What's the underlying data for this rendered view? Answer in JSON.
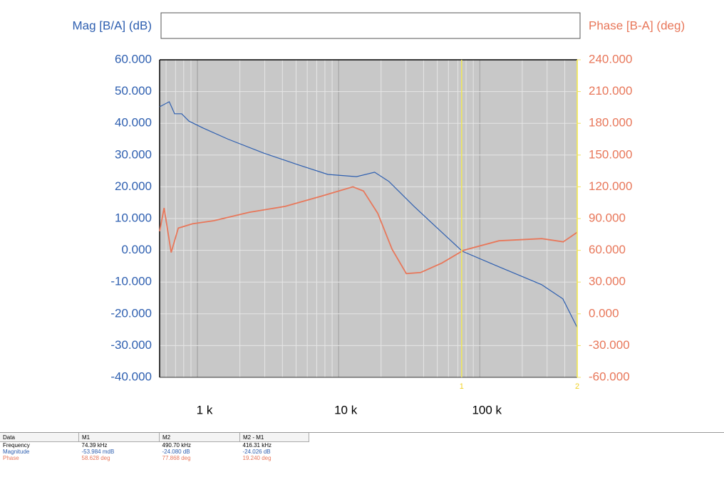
{
  "chart_data": {
    "type": "line",
    "ylabel": "Mag [B/A] (dB)",
    "y2label": "Phase [B-A] (deg)",
    "xscale": "log",
    "grid": true,
    "xlim": [
      540,
      490000
    ],
    "xticks": [
      {
        "value": 1000,
        "label": "1 k"
      },
      {
        "value": 10000,
        "label": "10 k"
      },
      {
        "value": 100000,
        "label": "100 k"
      }
    ],
    "ylim": [
      -40,
      60
    ],
    "yticks": [
      {
        "value": 60,
        "label": "60.000"
      },
      {
        "value": 50,
        "label": "50.000"
      },
      {
        "value": 40,
        "label": "40.000"
      },
      {
        "value": 30,
        "label": "30.000"
      },
      {
        "value": 20,
        "label": "20.000"
      },
      {
        "value": 10,
        "label": "10.000"
      },
      {
        "value": 0,
        "label": "0.000"
      },
      {
        "value": -10,
        "label": "-10.000"
      },
      {
        "value": -20,
        "label": "-20.000"
      },
      {
        "value": -30,
        "label": "-30.000"
      },
      {
        "value": -40,
        "label": "-40.000"
      }
    ],
    "y2lim": [
      -60,
      240
    ],
    "y2ticks": [
      {
        "value": 240,
        "label": "240.000"
      },
      {
        "value": 210,
        "label": "210.000"
      },
      {
        "value": 180,
        "label": "180.000"
      },
      {
        "value": 150,
        "label": "150.000"
      },
      {
        "value": 120,
        "label": "120.000"
      },
      {
        "value": 90,
        "label": "90.000"
      },
      {
        "value": 60,
        "label": "60.000"
      },
      {
        "value": 30,
        "label": "30.000"
      },
      {
        "value": 0,
        "label": "0.000"
      },
      {
        "value": -30,
        "label": "-30.000"
      },
      {
        "value": -60,
        "label": "-60.000"
      }
    ],
    "series": [
      {
        "name": "Magnitude",
        "color": "#2e5fb0",
        "x": [
          540,
          632,
          689,
          773,
          871,
          1100,
          1650,
          2950,
          5280,
          8400,
          13400,
          18000,
          22700,
          34300,
          48600,
          75300,
          137000,
          274000,
          388000,
          490000
        ],
        "values": [
          45.2,
          46.8,
          43,
          43,
          40.7,
          38.5,
          35,
          30.6,
          26.8,
          23.9,
          23.2,
          24.6,
          21.7,
          13.8,
          7.5,
          -0.3,
          -5.2,
          -10.8,
          -15.3,
          -24.3
        ]
      },
      {
        "name": "Phase",
        "color": "#e8775a",
        "axis": "y2",
        "x": [
          540,
          581,
          652,
          732,
          922,
          1307,
          2338,
          4180,
          7480,
          12620,
          15020,
          18950,
          23920,
          30200,
          38070,
          54000,
          76570,
          136900,
          275000,
          390000,
          490000
        ],
        "values": [
          78,
          100,
          58,
          81,
          85,
          88,
          96,
          101.5,
          111,
          120,
          116,
          95,
          61,
          38,
          39,
          48,
          60,
          69,
          71,
          68,
          77
        ]
      }
    ],
    "markers": [
      {
        "x": 74390,
        "label": "1"
      },
      {
        "x": 490700,
        "label": "2"
      }
    ]
  },
  "table": {
    "header": [
      "Data",
      "M1",
      "M2",
      "M2 - M1"
    ],
    "rows": [
      [
        "Frequency",
        "74.39 kHz",
        "490.70 kHz",
        "416.31 kHz"
      ],
      [
        "Magnitude",
        "-53.984 mdB",
        "-24.080 dB",
        "-24.026 dB"
      ],
      [
        "Phase",
        "58.628 deg",
        "77.868 deg",
        "19.240 deg"
      ]
    ]
  }
}
